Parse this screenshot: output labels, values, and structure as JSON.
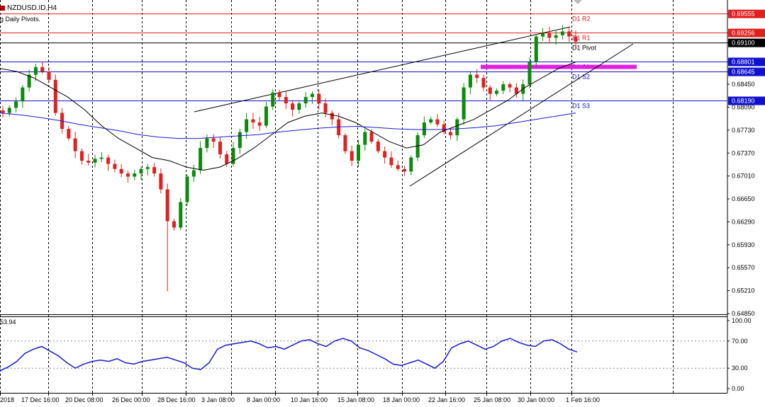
{
  "window": {
    "symbol_title": "NZDUSD.ID,H4",
    "indicator_title": "g Daily Pivots.",
    "rsi_label": "53.94"
  },
  "colors": {
    "candle_up": "#0b8a0b",
    "candle_down": "#e02020",
    "pivot_resistance": "#e02020",
    "pivot_support": "#1010d0",
    "pivot_main": "#000000",
    "zone_highlight": "#e020e0",
    "ma_fast": "#000000",
    "ma_slow": "#1a1acd",
    "rsi_line": "#1a1acd",
    "current_price_bg": "#000000"
  },
  "price_axis": {
    "labels": [
      "0.69555",
      "0.69256",
      "0.69100",
      "0.68801",
      "0.68645",
      "0.68450",
      "0.68090",
      "0.67730",
      "0.67370",
      "0.67010",
      "0.66650",
      "0.66290",
      "0.65930",
      "0.65570",
      "0.65210",
      "0.64850"
    ],
    "min": 0.6485,
    "max": 0.6974
  },
  "pivots": [
    {
      "name": "D1 R2",
      "price": 0.69555,
      "color": "#e02020"
    },
    {
      "name": "D1 R1",
      "price": 0.69256,
      "color": "#e02020"
    },
    {
      "name": "D1 Pivot",
      "price": 0.691,
      "color": "#000000"
    },
    {
      "name": "D1 S1",
      "price": 0.68801,
      "color": "#1010d0"
    },
    {
      "name": "D1 S2",
      "price": 0.68645,
      "color": "#1010d0"
    },
    {
      "name": "D1 S3",
      "price": 0.6819,
      "color": "#1010d0"
    }
  ],
  "current_price": "0.69100",
  "rsi_axis": {
    "labels": [
      "100.00",
      "70.00",
      "30.00",
      "0.00"
    ],
    "levels": [
      70,
      30
    ]
  },
  "time_axis": {
    "labels": [
      "2018",
      "17 Dec 16:00",
      "20 Dec 08:00",
      "26 Dec 00:00",
      "28 Dec 16:00",
      "3 Jan 08:00",
      "8 Jan 00:00",
      "10 Jan 16:00",
      "15 Jan 08:00",
      "18 Jan 00:00",
      "22 Jan 16:00",
      "25 Jan 08:00",
      "30 Jan 00:00",
      "1 Feb 16:00"
    ]
  },
  "chart_data": {
    "type": "candlestick",
    "title": "NZDUSD.ID,H4",
    "ylim": [
      0.6485,
      0.6974
    ],
    "close_path": [
      0.68,
      0.6808,
      0.6818,
      0.684,
      0.686,
      0.6872,
      0.6865,
      0.6852,
      0.68,
      0.6775,
      0.676,
      0.674,
      0.6725,
      0.6722,
      0.6728,
      0.673,
      0.672,
      0.6712,
      0.6705,
      0.67,
      0.6705,
      0.6712,
      0.6715,
      0.6705,
      0.668,
      0.663,
      0.662,
      0.666,
      0.67,
      0.671,
      0.6745,
      0.676,
      0.6755,
      0.6735,
      0.672,
      0.6745,
      0.677,
      0.679,
      0.6785,
      0.678,
      0.681,
      0.6832,
      0.6825,
      0.6815,
      0.6805,
      0.6815,
      0.6825,
      0.683,
      0.6815,
      0.68,
      0.679,
      0.6765,
      0.674,
      0.6725,
      0.675,
      0.677,
      0.6755,
      0.674,
      0.673,
      0.6718,
      0.6712,
      0.6708,
      0.673,
      0.6765,
      0.6785,
      0.679,
      0.6782,
      0.677,
      0.6765,
      0.679,
      0.684,
      0.686,
      0.6855,
      0.684,
      0.683,
      0.6835,
      0.6845,
      0.684,
      0.683,
      0.6845,
      0.688,
      0.692,
      0.6925,
      0.6918,
      0.6922,
      0.6928,
      0.692,
      0.6912
    ],
    "ma_fast": [
      0.687,
      0.6865,
      0.6855,
      0.684,
      0.6825,
      0.6805,
      0.678,
      0.676,
      0.6745,
      0.673,
      0.6725,
      0.6715,
      0.671,
      0.6715,
      0.6728,
      0.6745,
      0.6765,
      0.6785,
      0.6795,
      0.68,
      0.6795,
      0.6785,
      0.677,
      0.6755,
      0.6745,
      0.675,
      0.677,
      0.678,
      0.679,
      0.6805,
      0.682,
      0.684,
      0.6855,
      0.687,
      0.688
    ],
    "ma_slow": [
      0.68,
      0.6797,
      0.6793,
      0.6788,
      0.6782,
      0.6777,
      0.6772,
      0.6766,
      0.6762,
      0.676,
      0.676,
      0.6762,
      0.6764,
      0.6766,
      0.677,
      0.6773,
      0.6776,
      0.6778,
      0.6779,
      0.6777,
      0.6775,
      0.6774,
      0.6774,
      0.6775,
      0.6777,
      0.678,
      0.6785,
      0.679,
      0.6795,
      0.68
    ],
    "rsi": [
      26,
      32,
      40,
      52,
      58,
      62,
      55,
      48,
      38,
      30,
      36,
      40,
      42,
      40,
      44,
      38,
      36,
      40,
      42,
      44,
      46,
      42,
      38,
      30,
      28,
      38,
      58,
      64,
      66,
      68,
      70,
      66,
      60,
      62,
      58,
      64,
      70,
      72,
      66,
      62,
      70,
      74,
      70,
      60,
      56,
      50,
      44,
      36,
      34,
      38,
      42,
      36,
      30,
      40,
      60,
      66,
      70,
      64,
      58,
      62,
      70,
      74,
      68,
      64,
      62,
      70,
      72,
      66,
      58,
      54
    ]
  }
}
